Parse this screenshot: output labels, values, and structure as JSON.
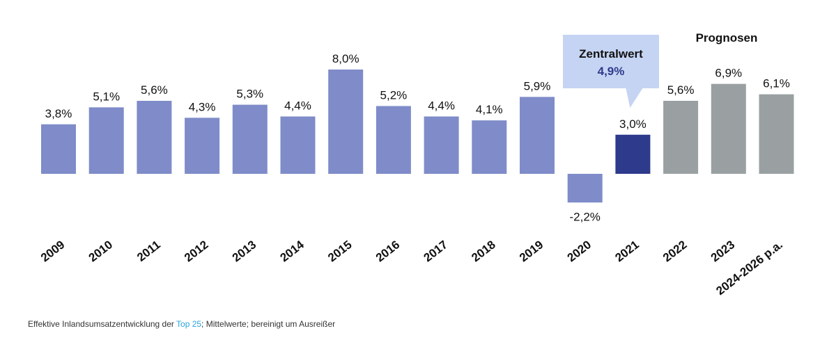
{
  "chart_data": {
    "type": "bar",
    "categories": [
      "2009",
      "2010",
      "2011",
      "2012",
      "2013",
      "2014",
      "2015",
      "2016",
      "2017",
      "2018",
      "2019",
      "2020",
      "2021",
      "2022",
      "2023",
      "2024-2026 p.a."
    ],
    "values": [
      3.8,
      5.1,
      5.6,
      4.3,
      5.3,
      4.4,
      8.0,
      5.2,
      4.4,
      4.1,
      5.9,
      -2.2,
      3.0,
      5.6,
      6.9,
      6.1
    ],
    "value_labels": [
      "3,8%",
      "5,1%",
      "5,6%",
      "4,3%",
      "5,3%",
      "4,4%",
      "8,0%",
      "5,2%",
      "4,4%",
      "4,1%",
      "5,9%",
      "-2,2%",
      "3,0%",
      "5,6%",
      "6,9%",
      "6,1%"
    ],
    "ylim": [
      -3,
      9
    ],
    "forecast_group_label": "Prognosen",
    "callout": {
      "title": "Zentralwert",
      "value": "4,9%",
      "target_category": "2021"
    },
    "colors": {
      "actual": "#7f8cc9",
      "highlight": "#2e3a8c",
      "forecast": "#9aa0a1",
      "callout_bg": "#c5d4f3",
      "callout_text": "#2e3a8c"
    }
  },
  "footnote": {
    "before": "Effektive Inlandsumsatzentwicklung der ",
    "highlight": "Top 25",
    "after": "; Mittelwerte; bereinigt um Ausreißer"
  }
}
